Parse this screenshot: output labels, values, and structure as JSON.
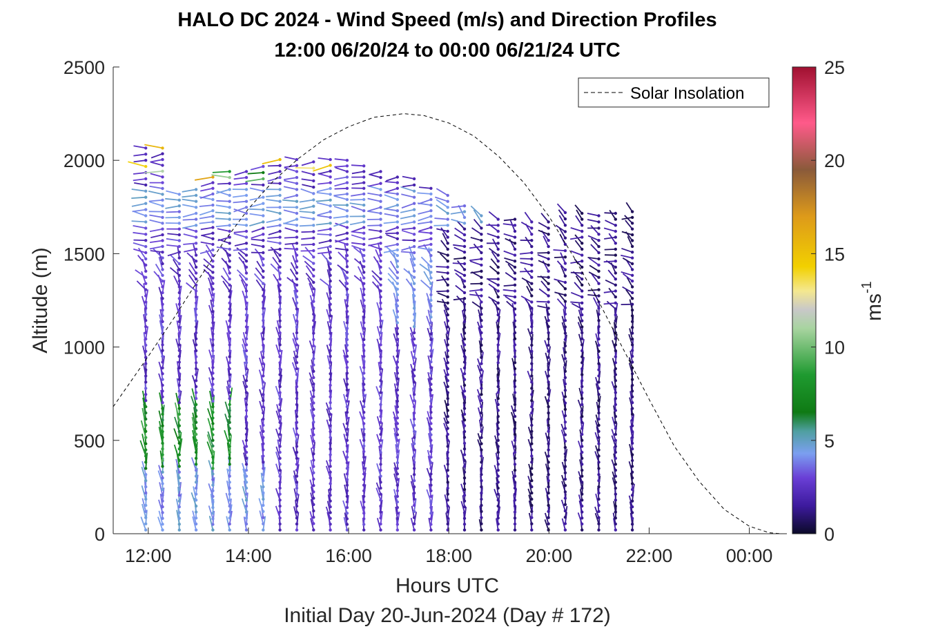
{
  "chart_data": {
    "type": "wind-barb-profile",
    "title_line1": "HALO DC 2024 - Wind Speed (m/s) and Direction Profiles",
    "title_line2": "12:00 06/20/24 to 00:00 06/21/24  UTC",
    "xlabel": "Hours UTC",
    "xlabel2": "Initial Day 20-Jun-2024 (Day # 172)",
    "ylabel": "Altitude (m)",
    "xlim": [
      11.3,
      24.75
    ],
    "ylim": [
      0,
      2500
    ],
    "xticks": [
      {
        "value": 12,
        "label": "12:00"
      },
      {
        "value": 14,
        "label": "14:00"
      },
      {
        "value": 16,
        "label": "16:00"
      },
      {
        "value": 18,
        "label": "18:00"
      },
      {
        "value": 20,
        "label": "20:00"
      },
      {
        "value": 22,
        "label": "22:00"
      },
      {
        "value": 24,
        "label": "00:00"
      }
    ],
    "yticks": [
      {
        "value": 0,
        "label": "0"
      },
      {
        "value": 500,
        "label": "500"
      },
      {
        "value": 1000,
        "label": "1000"
      },
      {
        "value": 1500,
        "label": "1500"
      },
      {
        "value": 2000,
        "label": "2000"
      },
      {
        "value": 2500,
        "label": "2500"
      }
    ],
    "legend": {
      "label": "Solar Insolation",
      "position": "top-right"
    },
    "colorbar": {
      "label": "ms",
      "label_exponent": "-1",
      "range": [
        0,
        25
      ],
      "ticks": [
        {
          "value": 0,
          "label": "0"
        },
        {
          "value": 5,
          "label": "5"
        },
        {
          "value": 10,
          "label": "10"
        },
        {
          "value": 15,
          "label": "15"
        },
        {
          "value": 20,
          "label": "20"
        },
        {
          "value": 25,
          "label": "25"
        }
      ],
      "stops": [
        {
          "v": 0,
          "color": "#0b0a28"
        },
        {
          "v": 1.5,
          "color": "#3d1a9e"
        },
        {
          "v": 3,
          "color": "#6a3fd6"
        },
        {
          "v": 4.3,
          "color": "#7b9ff0"
        },
        {
          "v": 5.5,
          "color": "#4f9fa0"
        },
        {
          "v": 6.5,
          "color": "#0f7a14"
        },
        {
          "v": 8.5,
          "color": "#1f9a30"
        },
        {
          "v": 11,
          "color": "#a8d4a0"
        },
        {
          "v": 12,
          "color": "#c8c8c8"
        },
        {
          "v": 13,
          "color": "#f4e890"
        },
        {
          "v": 14.3,
          "color": "#f2d000"
        },
        {
          "v": 17,
          "color": "#dd9a1a"
        },
        {
          "v": 19.5,
          "color": "#8a5a3a"
        },
        {
          "v": 22,
          "color": "#ff5a8a"
        },
        {
          "v": 25,
          "color": "#a01030"
        }
      ]
    },
    "solar_insolation": {
      "style": "dashed",
      "color": "#000000",
      "note": "relative curve, peak near 17:05 UTC",
      "points": [
        [
          11.3,
          680
        ],
        [
          12.0,
          950
        ],
        [
          12.5,
          1150
        ],
        [
          13.0,
          1360
        ],
        [
          13.5,
          1560
        ],
        [
          14.0,
          1740
        ],
        [
          14.5,
          1890
        ],
        [
          15.0,
          2010
        ],
        [
          15.5,
          2110
        ],
        [
          16.0,
          2180
        ],
        [
          16.5,
          2230
        ],
        [
          17.1,
          2250
        ],
        [
          17.5,
          2240
        ],
        [
          18.0,
          2200
        ],
        [
          18.5,
          2130
        ],
        [
          19.0,
          2020
        ],
        [
          19.5,
          1880
        ],
        [
          20.0,
          1700
        ],
        [
          20.5,
          1480
        ],
        [
          21.0,
          1240
        ],
        [
          21.5,
          980
        ],
        [
          22.0,
          720
        ],
        [
          22.5,
          470
        ],
        [
          23.0,
          280
        ],
        [
          23.5,
          130
        ],
        [
          24.0,
          40
        ],
        [
          24.4,
          5
        ],
        [
          24.65,
          0
        ]
      ]
    },
    "profiles": {
      "x_start": 11.95,
      "x_step": 0.335,
      "count": 30,
      "representative_speed_ms": {
        "near_surface_morning": 9,
        "boundary_layer": 3,
        "upper": 2,
        "evening": 1
      }
    }
  }
}
